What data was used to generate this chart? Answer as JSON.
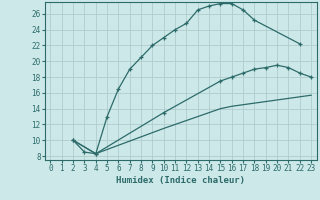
{
  "xlabel": "Humidex (Indice chaleur)",
  "bg_color": "#cde8e8",
  "grid_color": "#b0cccc",
  "line_color": "#2d6b6b",
  "xlim": [
    -0.5,
    23.5
  ],
  "ylim": [
    7.5,
    27.5
  ],
  "xticks": [
    0,
    1,
    2,
    3,
    4,
    5,
    6,
    7,
    8,
    9,
    10,
    11,
    12,
    13,
    14,
    15,
    16,
    17,
    18,
    19,
    20,
    21,
    22,
    23
  ],
  "yticks": [
    8,
    10,
    12,
    14,
    16,
    18,
    20,
    22,
    24,
    26
  ],
  "line1_x": [
    2,
    3,
    4,
    5,
    6,
    7,
    8,
    9,
    10,
    11,
    12,
    13,
    14,
    15,
    16,
    17,
    18,
    22
  ],
  "line1_y": [
    10,
    8.5,
    8.3,
    13,
    16.5,
    19,
    20.5,
    22,
    23,
    24,
    24.8,
    26.5,
    27.0,
    27.3,
    27.3,
    26.5,
    25.2,
    22.2
  ],
  "line2_x": [
    2,
    4,
    10,
    15,
    16,
    17,
    18,
    19,
    20,
    21,
    22,
    23
  ],
  "line2_y": [
    10,
    8.3,
    13.5,
    17.5,
    18.0,
    18.5,
    19.0,
    19.2,
    19.5,
    19.2,
    18.5,
    18.0
  ],
  "line3_x": [
    2,
    4,
    10,
    15,
    16,
    17,
    18,
    19,
    20,
    21,
    22,
    23
  ],
  "line3_y": [
    10,
    8.3,
    11.5,
    14.0,
    14.3,
    14.5,
    14.7,
    14.9,
    15.1,
    15.3,
    15.5,
    15.7
  ]
}
